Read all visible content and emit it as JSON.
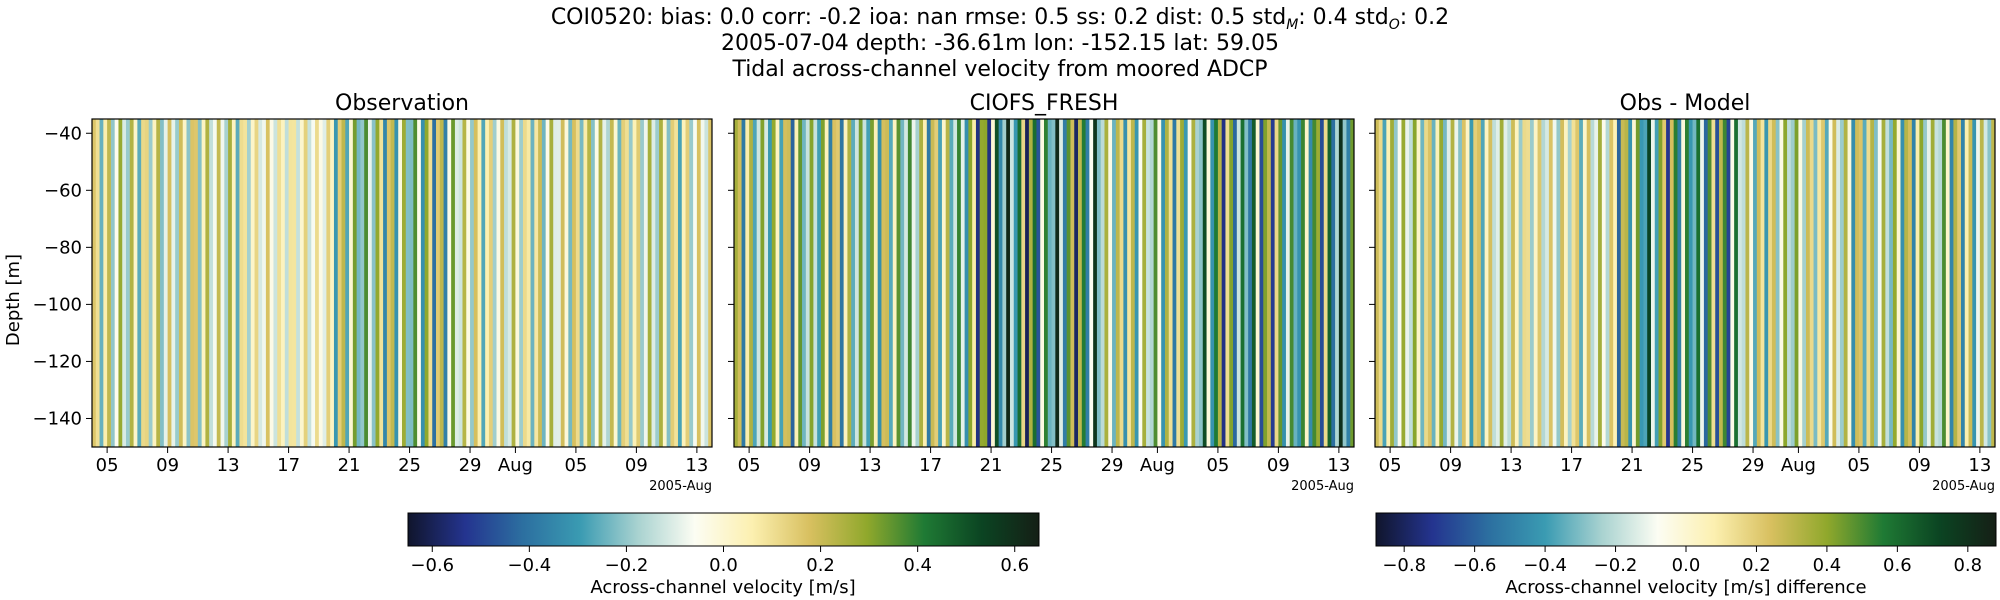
{
  "header": {
    "line1_prefix": "COI0520: bias: 0.0  corr: -0.2  ioa: nan  rmse: 0.5  ss: 0.2  dist: 0.5  std",
    "std_m_sub": "M",
    "std_m_value": ": 0.4  std",
    "std_o_sub": "O",
    "std_o_value": ": 0.2",
    "line2": "2005-07-04 depth: -36.61m lon: -152.15 lat: 59.05",
    "line3": "Tidal across-channel velocity from moored ADCP"
  },
  "colormap_stops": [
    "#10152c",
    "#24348f",
    "#2c6fa0",
    "#3a9bb2",
    "#a8d2d0",
    "#fcfdf3",
    "#fcf0b0",
    "#d8c060",
    "#90a82c",
    "#1f7a34",
    "#0b4422",
    "#151f16"
  ],
  "chart_data": [
    {
      "type": "heatmap",
      "title": "Observation",
      "ylabel": "Depth [m]",
      "ylim": [
        -150,
        -35
      ],
      "yticks": [
        -40,
        -60,
        -80,
        -100,
        -120,
        -140
      ],
      "xrange": [
        "2005-07-04",
        "2005-08-14"
      ],
      "xticks": [
        {
          "date": "2005-07-05",
          "label": "05"
        },
        {
          "date": "2005-07-09",
          "label": "09"
        },
        {
          "date": "2005-07-13",
          "label": "13"
        },
        {
          "date": "2005-07-17",
          "label": "17"
        },
        {
          "date": "2005-07-21",
          "label": "21"
        },
        {
          "date": "2005-07-25",
          "label": "25"
        },
        {
          "date": "2005-07-29",
          "label": "29"
        },
        {
          "date": "2005-08-01",
          "label": "Aug"
        },
        {
          "date": "2005-08-05",
          "label": "05"
        },
        {
          "date": "2005-08-09",
          "label": "09"
        },
        {
          "date": "2005-08-13",
          "label": "13"
        }
      ],
      "x_offset_label": "2005-Aug",
      "color_range": [
        -0.65,
        0.65
      ],
      "stripe_width_days": 0.25,
      "tidal_amplitude_segments": [
        {
          "dates": [
            "2005-07-04",
            "2005-07-14"
          ],
          "amplitude": 0.3
        },
        {
          "dates": [
            "2005-07-14",
            "2005-07-20"
          ],
          "amplitude": 0.2
        },
        {
          "dates": [
            "2005-07-20",
            "2005-07-28"
          ],
          "amplitude": 0.45
        },
        {
          "dates": [
            "2005-07-28",
            "2005-08-04"
          ],
          "amplitude": 0.28
        },
        {
          "dates": [
            "2005-08-04",
            "2005-08-14"
          ],
          "amplitude": 0.3
        }
      ]
    },
    {
      "type": "heatmap",
      "title": "CIOFS_FRESH",
      "ylabel": "",
      "ylim": [
        -150,
        -35
      ],
      "yticks": [
        -40,
        -60,
        -80,
        -100,
        -120,
        -140
      ],
      "xrange": [
        "2005-07-04",
        "2005-08-14"
      ],
      "xticks": [
        {
          "date": "2005-07-05",
          "label": "05"
        },
        {
          "date": "2005-07-09",
          "label": "09"
        },
        {
          "date": "2005-07-13",
          "label": "13"
        },
        {
          "date": "2005-07-17",
          "label": "17"
        },
        {
          "date": "2005-07-21",
          "label": "21"
        },
        {
          "date": "2005-07-25",
          "label": "25"
        },
        {
          "date": "2005-07-29",
          "label": "29"
        },
        {
          "date": "2005-08-01",
          "label": "Aug"
        },
        {
          "date": "2005-08-05",
          "label": "05"
        },
        {
          "date": "2005-08-09",
          "label": "09"
        },
        {
          "date": "2005-08-13",
          "label": "13"
        }
      ],
      "x_offset_label": "2005-Aug",
      "color_range": [
        -0.65,
        0.65
      ],
      "stripe_width_days": 0.25,
      "tidal_amplitude_segments": [
        {
          "dates": [
            "2005-07-04",
            "2005-07-14"
          ],
          "amplitude": 0.45
        },
        {
          "dates": [
            "2005-07-14",
            "2005-07-20"
          ],
          "amplitude": 0.4
        },
        {
          "dates": [
            "2005-07-20",
            "2005-07-28"
          ],
          "amplitude": 0.65
        },
        {
          "dates": [
            "2005-07-28",
            "2005-08-04"
          ],
          "amplitude": 0.42
        },
        {
          "dates": [
            "2005-08-04",
            "2005-08-14"
          ],
          "amplitude": 0.6
        }
      ]
    },
    {
      "type": "heatmap",
      "title": "Obs - Model",
      "ylabel": "",
      "ylim": [
        -150,
        -35
      ],
      "yticks": [
        -40,
        -60,
        -80,
        -100,
        -120,
        -140
      ],
      "xrange": [
        "2005-07-04",
        "2005-08-14"
      ],
      "xticks": [
        {
          "date": "2005-07-05",
          "label": "05"
        },
        {
          "date": "2005-07-09",
          "label": "09"
        },
        {
          "date": "2005-07-13",
          "label": "13"
        },
        {
          "date": "2005-07-17",
          "label": "17"
        },
        {
          "date": "2005-07-21",
          "label": "21"
        },
        {
          "date": "2005-07-25",
          "label": "25"
        },
        {
          "date": "2005-07-29",
          "label": "29"
        },
        {
          "date": "2005-08-01",
          "label": "Aug"
        },
        {
          "date": "2005-08-05",
          "label": "05"
        },
        {
          "date": "2005-08-09",
          "label": "09"
        },
        {
          "date": "2005-08-13",
          "label": "13"
        }
      ],
      "x_offset_label": "2005-Aug",
      "color_range": [
        -0.88,
        0.88
      ],
      "stripe_width_days": 0.25,
      "tidal_amplitude_segments": [
        {
          "dates": [
            "2005-07-04",
            "2005-07-14"
          ],
          "amplitude": 0.45
        },
        {
          "dates": [
            "2005-07-14",
            "2005-07-20"
          ],
          "amplitude": 0.4
        },
        {
          "dates": [
            "2005-07-20",
            "2005-07-28"
          ],
          "amplitude": 0.8
        },
        {
          "dates": [
            "2005-07-28",
            "2005-08-04"
          ],
          "amplitude": 0.45
        },
        {
          "dates": [
            "2005-08-04",
            "2005-08-14"
          ],
          "amplitude": 0.55
        }
      ]
    }
  ],
  "colorbars": [
    {
      "label": "Across-channel velocity [m/s]",
      "range": [
        -0.65,
        0.65
      ],
      "ticks": [
        {
          "value": -0.6,
          "label": "−0.6"
        },
        {
          "value": -0.4,
          "label": "−0.4"
        },
        {
          "value": -0.2,
          "label": "−0.2"
        },
        {
          "value": 0.0,
          "label": "0.0"
        },
        {
          "value": 0.2,
          "label": "0.2"
        },
        {
          "value": 0.4,
          "label": "0.4"
        },
        {
          "value": 0.6,
          "label": "0.6"
        }
      ]
    },
    {
      "label": "Across-channel velocity [m/s] difference",
      "range": [
        -0.88,
        0.88
      ],
      "ticks": [
        {
          "value": -0.8,
          "label": "−0.8"
        },
        {
          "value": -0.6,
          "label": "−0.6"
        },
        {
          "value": -0.4,
          "label": "−0.4"
        },
        {
          "value": -0.2,
          "label": "−0.2"
        },
        {
          "value": 0.0,
          "label": "0.0"
        },
        {
          "value": 0.2,
          "label": "0.2"
        },
        {
          "value": 0.4,
          "label": "0.4"
        },
        {
          "value": 0.6,
          "label": "0.6"
        },
        {
          "value": 0.8,
          "label": "0.8"
        }
      ]
    }
  ]
}
